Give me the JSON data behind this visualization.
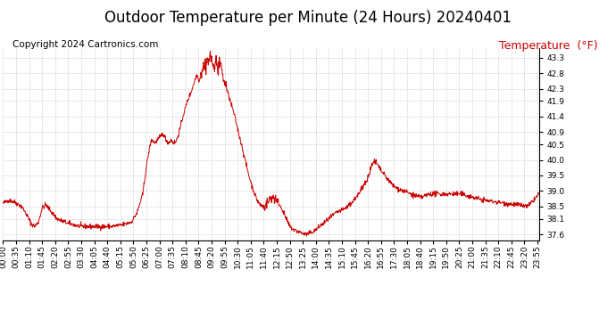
{
  "title": "Outdoor Temperature per Minute (24 Hours) 20240401",
  "copyright_text": "Copyright 2024 Cartronics.com",
  "legend_label": "Temperature  (°F)",
  "line_color": "#cc0000",
  "background_color": "#ffffff",
  "grid_color": "#bbbbbb",
  "ylim": [
    37.4,
    43.6
  ],
  "yticks": [
    37.6,
    38.1,
    38.5,
    39.0,
    39.5,
    40.0,
    40.5,
    40.9,
    41.4,
    41.9,
    42.3,
    42.8,
    43.3
  ],
  "title_fontsize": 12,
  "copyright_fontsize": 7.5,
  "legend_fontsize": 9,
  "tick_fontsize": 6.5,
  "total_minutes": 1440,
  "xtick_step": 35
}
